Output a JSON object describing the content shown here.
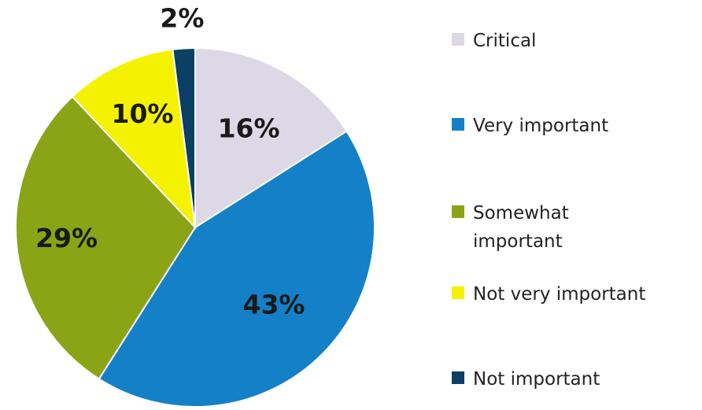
{
  "chart_data": {
    "type": "pie",
    "start": "12 o'clock",
    "direction": "clockwise",
    "legend_position": "right",
    "slices": [
      {
        "label": "Critical",
        "value": 16,
        "display": "16%",
        "color": "#DCD8E6"
      },
      {
        "label": "Very important",
        "value": 43,
        "display": "43%",
        "color": "#1380C8"
      },
      {
        "label": "Somewhat important",
        "value": 29,
        "display": "29%",
        "color": "#8BA416"
      },
      {
        "label": "Not very important",
        "value": 10,
        "display": "10%",
        "color": "#F4F200"
      },
      {
        "label": "Not important",
        "value": 2,
        "display": "2%",
        "color": "#0B3F63"
      }
    ]
  }
}
